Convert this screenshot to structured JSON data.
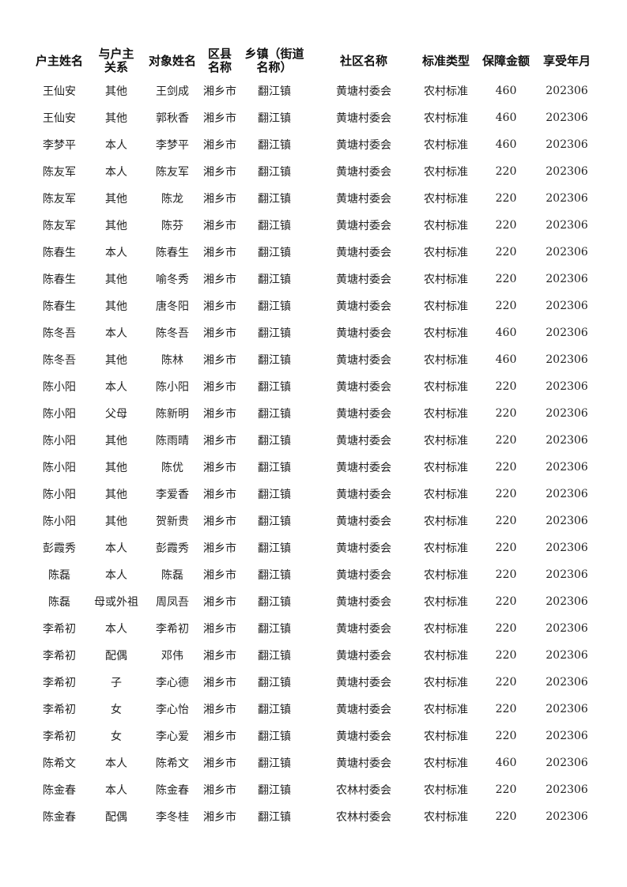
{
  "columns": [
    "户主姓名",
    "与户主关系",
    "对象姓名",
    "区县名称",
    "乡镇（街道名称）",
    "社区名称",
    "标准类型",
    "保障金额",
    "享受年月"
  ],
  "header_lines": [
    [
      "户主姓名"
    ],
    [
      "与户主",
      "关系"
    ],
    [
      "对象姓名"
    ],
    [
      "区县",
      "名称"
    ],
    [
      "乡镇（街道",
      "名称）"
    ],
    [
      "社区名称"
    ],
    [
      "标准类型"
    ],
    [
      "保障金额"
    ],
    [
      "享受年月"
    ]
  ],
  "rows": [
    [
      "王仙安",
      "其他",
      "王剑成",
      "湘乡市",
      "翻江镇",
      "黄塘村委会",
      "农村标准",
      "460",
      "202306"
    ],
    [
      "王仙安",
      "其他",
      "郭秋香",
      "湘乡市",
      "翻江镇",
      "黄塘村委会",
      "农村标准",
      "460",
      "202306"
    ],
    [
      "李梦平",
      "本人",
      "李梦平",
      "湘乡市",
      "翻江镇",
      "黄塘村委会",
      "农村标准",
      "460",
      "202306"
    ],
    [
      "陈友军",
      "本人",
      "陈友军",
      "湘乡市",
      "翻江镇",
      "黄塘村委会",
      "农村标准",
      "220",
      "202306"
    ],
    [
      "陈友军",
      "其他",
      "陈龙",
      "湘乡市",
      "翻江镇",
      "黄塘村委会",
      "农村标准",
      "220",
      "202306"
    ],
    [
      "陈友军",
      "其他",
      "陈芬",
      "湘乡市",
      "翻江镇",
      "黄塘村委会",
      "农村标准",
      "220",
      "202306"
    ],
    [
      "陈春生",
      "本人",
      "陈春生",
      "湘乡市",
      "翻江镇",
      "黄塘村委会",
      "农村标准",
      "220",
      "202306"
    ],
    [
      "陈春生",
      "其他",
      "喻冬秀",
      "湘乡市",
      "翻江镇",
      "黄塘村委会",
      "农村标准",
      "220",
      "202306"
    ],
    [
      "陈春生",
      "其他",
      "唐冬阳",
      "湘乡市",
      "翻江镇",
      "黄塘村委会",
      "农村标准",
      "220",
      "202306"
    ],
    [
      "陈冬吾",
      "本人",
      "陈冬吾",
      "湘乡市",
      "翻江镇",
      "黄塘村委会",
      "农村标准",
      "460",
      "202306"
    ],
    [
      "陈冬吾",
      "其他",
      "陈林",
      "湘乡市",
      "翻江镇",
      "黄塘村委会",
      "农村标准",
      "460",
      "202306"
    ],
    [
      "陈小阳",
      "本人",
      "陈小阳",
      "湘乡市",
      "翻江镇",
      "黄塘村委会",
      "农村标准",
      "220",
      "202306"
    ],
    [
      "陈小阳",
      "父母",
      "陈新明",
      "湘乡市",
      "翻江镇",
      "黄塘村委会",
      "农村标准",
      "220",
      "202306"
    ],
    [
      "陈小阳",
      "其他",
      "陈雨晴",
      "湘乡市",
      "翻江镇",
      "黄塘村委会",
      "农村标准",
      "220",
      "202306"
    ],
    [
      "陈小阳",
      "其他",
      "陈优",
      "湘乡市",
      "翻江镇",
      "黄塘村委会",
      "农村标准",
      "220",
      "202306"
    ],
    [
      "陈小阳",
      "其他",
      "李爱香",
      "湘乡市",
      "翻江镇",
      "黄塘村委会",
      "农村标准",
      "220",
      "202306"
    ],
    [
      "陈小阳",
      "其他",
      "贺新贵",
      "湘乡市",
      "翻江镇",
      "黄塘村委会",
      "农村标准",
      "220",
      "202306"
    ],
    [
      "彭霞秀",
      "本人",
      "彭霞秀",
      "湘乡市",
      "翻江镇",
      "黄塘村委会",
      "农村标准",
      "220",
      "202306"
    ],
    [
      "陈磊",
      "本人",
      "陈磊",
      "湘乡市",
      "翻江镇",
      "黄塘村委会",
      "农村标准",
      "220",
      "202306"
    ],
    [
      "陈磊",
      "母或外祖",
      "周凤吾",
      "湘乡市",
      "翻江镇",
      "黄塘村委会",
      "农村标准",
      "220",
      "202306"
    ],
    [
      "李希初",
      "本人",
      "李希初",
      "湘乡市",
      "翻江镇",
      "黄塘村委会",
      "农村标准",
      "220",
      "202306"
    ],
    [
      "李希初",
      "配偶",
      "邓伟",
      "湘乡市",
      "翻江镇",
      "黄塘村委会",
      "农村标准",
      "220",
      "202306"
    ],
    [
      "李希初",
      "子",
      "李心德",
      "湘乡市",
      "翻江镇",
      "黄塘村委会",
      "农村标准",
      "220",
      "202306"
    ],
    [
      "李希初",
      "女",
      "李心怡",
      "湘乡市",
      "翻江镇",
      "黄塘村委会",
      "农村标准",
      "220",
      "202306"
    ],
    [
      "李希初",
      "女",
      "李心爱",
      "湘乡市",
      "翻江镇",
      "黄塘村委会",
      "农村标准",
      "220",
      "202306"
    ],
    [
      "陈希文",
      "本人",
      "陈希文",
      "湘乡市",
      "翻江镇",
      "黄塘村委会",
      "农村标准",
      "460",
      "202306"
    ],
    [
      "陈金春",
      "本人",
      "陈金春",
      "湘乡市",
      "翻江镇",
      "农林村委会",
      "农村标准",
      "220",
      "202306"
    ],
    [
      "陈金春",
      "配偶",
      "李冬桂",
      "湘乡市",
      "翻江镇",
      "农林村委会",
      "农村标准",
      "220",
      "202306"
    ]
  ]
}
